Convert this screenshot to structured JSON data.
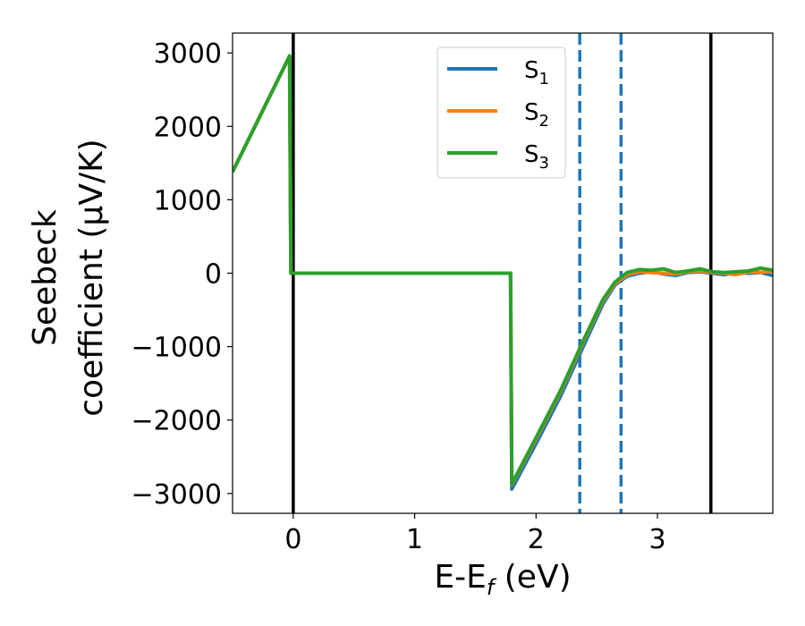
{
  "chart_data": {
    "type": "line",
    "xlabel": "E-E",
    "xlabel_sub": "f",
    "xlabel_unit": " (eV)",
    "ylabel_line1": "Seebeck",
    "ylabel_line2": "coefficient  (μV/K)",
    "xlim": [
      -0.5,
      3.95
    ],
    "ylim": [
      -3270,
      3270
    ],
    "xticks": [
      0,
      1,
      2,
      3
    ],
    "xtick_labels": [
      "0",
      "1",
      "2",
      "3"
    ],
    "yticks": [
      -3000,
      -2000,
      -1000,
      0,
      1000,
      2000,
      3000
    ],
    "ytick_labels": [
      "−3000",
      "−2000",
      "−1000",
      "0",
      "1000",
      "2000",
      "3000"
    ],
    "legend_position": "top-center",
    "series": [
      {
        "name": "S",
        "name_sub": "1",
        "color": "#1f77b4",
        "x": [
          -0.5,
          -0.03,
          -0.02,
          1.79,
          1.8,
          2.0,
          2.2,
          2.4,
          2.55,
          2.65,
          2.75,
          2.85,
          2.95,
          3.05,
          3.15,
          3.25,
          3.35,
          3.45,
          3.55,
          3.65,
          3.75,
          3.85,
          3.95
        ],
        "y": [
          1380,
          2960,
          0,
          0,
          -2940,
          -2320,
          -1680,
          -960,
          -420,
          -160,
          -40,
          0,
          20,
          -10,
          -30,
          10,
          20,
          0,
          -20,
          10,
          0,
          10,
          -30
        ]
      },
      {
        "name": "S",
        "name_sub": "2",
        "color": "#ff7f0e",
        "x": [
          -0.5,
          -0.03,
          -0.02,
          1.79,
          1.8,
          2.0,
          2.2,
          2.4,
          2.55,
          2.65,
          2.75,
          2.85,
          2.95,
          3.05,
          3.15,
          3.25,
          3.35,
          3.45,
          3.55,
          3.65,
          3.75,
          3.85,
          3.95
        ],
        "y": [
          1380,
          2960,
          0,
          0,
          -2880,
          -2260,
          -1620,
          -900,
          -380,
          -140,
          -20,
          20,
          10,
          0,
          -10,
          20,
          30,
          10,
          0,
          -20,
          20,
          10,
          30
        ]
      },
      {
        "name": "S",
        "name_sub": "3",
        "color": "#2ca02c",
        "x": [
          -0.5,
          -0.03,
          -0.02,
          1.79,
          1.8,
          2.0,
          2.2,
          2.4,
          2.55,
          2.65,
          2.75,
          2.85,
          2.95,
          3.05,
          3.15,
          3.25,
          3.35,
          3.45,
          3.55,
          3.65,
          3.75,
          3.85,
          3.95
        ],
        "y": [
          1380,
          2960,
          0,
          0,
          -2870,
          -2240,
          -1600,
          -880,
          -360,
          -120,
          10,
          50,
          40,
          60,
          10,
          30,
          60,
          20,
          10,
          20,
          30,
          70,
          40
        ]
      }
    ],
    "vertical_lines": [
      {
        "x": 0.0,
        "style": "solid",
        "color": "#000000"
      },
      {
        "x": 3.44,
        "style": "solid",
        "color": "#000000"
      },
      {
        "x": 2.36,
        "style": "dashed",
        "color": "#1f77b4"
      },
      {
        "x": 2.7,
        "style": "dashed",
        "color": "#1f77b4"
      }
    ],
    "grid": false
  }
}
